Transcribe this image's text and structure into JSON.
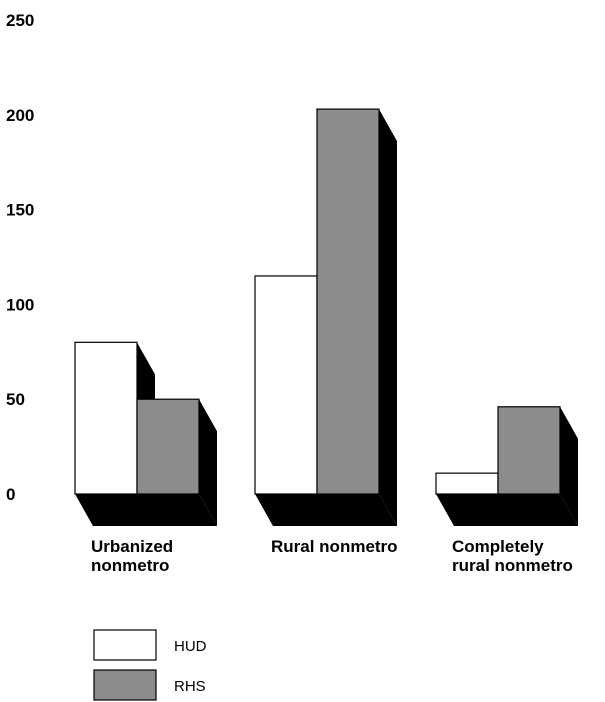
{
  "chart_data": {
    "type": "bar",
    "categories": [
      [
        "Urbanized",
        "nonmetro"
      ],
      [
        "Rural nonmetro"
      ],
      [
        "Completely",
        "rural nonmetro"
      ]
    ],
    "series": [
      {
        "name": "HUD",
        "values": [
          80,
          115,
          11
        ],
        "color": "#ffffff"
      },
      {
        "name": "RHS",
        "values": [
          50,
          203,
          46
        ],
        "color": "#8c8c8c"
      }
    ],
    "ylim": [
      0,
      250
    ],
    "yticks": [
      0,
      50,
      100,
      150,
      200,
      250
    ],
    "grid": false,
    "legend_position": "bottom-left",
    "shadow_color": "#000000"
  }
}
